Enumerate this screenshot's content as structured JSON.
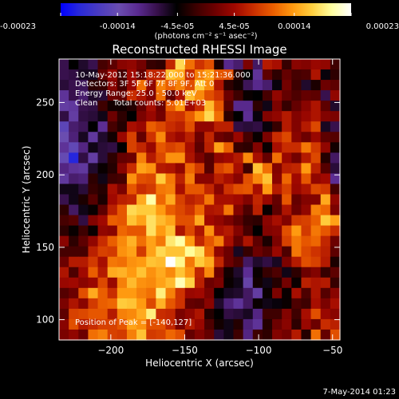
{
  "colorbar": {
    "tick_labels": [
      "-0.00023",
      "-0.00014",
      "-4.5e-05",
      "4.5e-05",
      "0.00014",
      "0.00023"
    ],
    "tick_values": [
      -0.00023,
      -0.00014,
      -4.5e-05,
      4.5e-05,
      0.00014,
      0.00023
    ],
    "range": [
      -0.00023,
      0.00023
    ],
    "unit_label": "(photons cm⁻² s⁻¹ asec⁻²)"
  },
  "info": {
    "time_range": "10-May-2012 15:18:22.000 to 15:21:36.000",
    "detectors": "Detectors: 3F 5F 6F 7F 8F 9F, Att 0",
    "energy_range": "Energy Range: 25.0 - 50.0 keV",
    "clean_label": "Clean",
    "total_counts": "Total counts: 5.01E+03",
    "peak_position": "Position of Peak = [-140,127]"
  },
  "footer": {
    "date": "7-May-2014 01:23"
  },
  "chart_data": {
    "type": "heatmap",
    "title": "Reconstructed RHESSI Image",
    "xlabel": "Heliocentric X (arcsec)",
    "ylabel": "Heliocentric Y (arcsec)",
    "xlim": [
      -235,
      -45
    ],
    "ylim": [
      86,
      280
    ],
    "x_ticks": [
      -200,
      -150,
      -100,
      -50
    ],
    "x_tick_labels": [
      "−200",
      "−150",
      "−100",
      "−50"
    ],
    "y_ticks": [
      100,
      150,
      200,
      250
    ],
    "y_tick_labels": [
      "100",
      "150",
      "200",
      "250"
    ],
    "peak": [
      -140,
      127
    ],
    "colormap": [
      "#0000ff",
      "#2a2ad8",
      "#4b3cc0",
      "#6a4db0",
      "#5a2a90",
      "#36104a",
      "#000000",
      "#3c0000",
      "#6e0000",
      "#a00800",
      "#cc3000",
      "#ec6000",
      "#ff9a10",
      "#ffd040",
      "#ffffa0",
      "#ffffff"
    ],
    "grid": "27x29",
    "values": [
      [
        0.33,
        0.4,
        0.36,
        0.33,
        0.48,
        0.51,
        0.57,
        0.58,
        0.54,
        0.46,
        0.45,
        0.65,
        0.88,
        0.75,
        0.67,
        0.71,
        0.43,
        0.27,
        0.3,
        0.55,
        0.31,
        0.63,
        0.61,
        0.46,
        0.57,
        0.56,
        0.59,
        0.58,
        0.47
      ],
      [
        0.33,
        0.34,
        0.37,
        0.37,
        0.52,
        0.59,
        0.48,
        0.6,
        0.52,
        0.65,
        0.65,
        0.85,
        0.82,
        0.66,
        0.77,
        0.81,
        0.72,
        0.71,
        0.44,
        0.4,
        0.25,
        0.51,
        0.45,
        0.52,
        0.48,
        0.49,
        0.62,
        0.39,
        0.45
      ],
      [
        0.35,
        0.33,
        0.32,
        0.45,
        0.46,
        0.57,
        0.48,
        0.59,
        0.75,
        0.58,
        0.77,
        0.73,
        0.77,
        0.71,
        0.86,
        0.78,
        0.62,
        0.45,
        0.42,
        0.32,
        0.27,
        0.3,
        0.39,
        0.54,
        0.47,
        0.36,
        0.43,
        0.53,
        0.51
      ],
      [
        0.25,
        0.33,
        0.3,
        0.36,
        0.35,
        0.53,
        0.52,
        0.66,
        0.62,
        0.56,
        0.75,
        0.52,
        0.62,
        0.84,
        0.78,
        0.71,
        0.67,
        0.53,
        0.47,
        0.41,
        0.4,
        0.48,
        0.58,
        0.52,
        0.49,
        0.52,
        0.51,
        0.33,
        0.58
      ],
      [
        0.23,
        0.24,
        0.33,
        0.34,
        0.47,
        0.42,
        0.42,
        0.44,
        0.52,
        0.61,
        0.53,
        0.73,
        0.8,
        0.6,
        0.66,
        0.84,
        0.72,
        0.5,
        0.27,
        0.27,
        0.45,
        0.38,
        0.55,
        0.46,
        0.52,
        0.57,
        0.62,
        0.51,
        0.36
      ],
      [
        0.34,
        0.23,
        0.34,
        0.35,
        0.38,
        0.53,
        0.45,
        0.4,
        0.55,
        0.59,
        0.54,
        0.68,
        0.67,
        0.73,
        0.8,
        0.88,
        0.75,
        0.45,
        0.4,
        0.26,
        0.39,
        0.56,
        0.58,
        0.63,
        0.56,
        0.59,
        0.62,
        0.56,
        0.55
      ],
      [
        0.17,
        0.3,
        0.32,
        0.4,
        0.26,
        0.48,
        0.44,
        0.61,
        0.59,
        0.73,
        0.7,
        0.66,
        0.64,
        0.71,
        0.58,
        0.58,
        0.64,
        0.64,
        0.34,
        0.35,
        0.34,
        0.39,
        0.46,
        0.63,
        0.56,
        0.63,
        0.7,
        0.37,
        0.33
      ],
      [
        0.2,
        0.29,
        0.37,
        0.24,
        0.36,
        0.42,
        0.59,
        0.69,
        0.52,
        0.67,
        0.78,
        0.62,
        0.59,
        0.64,
        0.53,
        0.65,
        0.53,
        0.51,
        0.59,
        0.48,
        0.41,
        0.55,
        0.66,
        0.7,
        0.57,
        0.53,
        0.59,
        0.51,
        0.5
      ],
      [
        0.25,
        0.18,
        0.28,
        0.38,
        0.35,
        0.34,
        0.4,
        0.69,
        0.65,
        0.59,
        0.72,
        0.69,
        0.71,
        0.61,
        0.51,
        0.64,
        0.81,
        0.73,
        0.46,
        0.45,
        0.56,
        0.41,
        0.61,
        0.66,
        0.66,
        0.76,
        0.68,
        0.58,
        0.42
      ],
      [
        0.19,
        0.06,
        0.34,
        0.23,
        0.35,
        0.45,
        0.52,
        0.53,
        0.77,
        0.63,
        0.7,
        0.79,
        0.79,
        0.62,
        0.55,
        0.5,
        0.58,
        0.6,
        0.63,
        0.78,
        0.61,
        0.52,
        0.75,
        0.59,
        0.54,
        0.63,
        0.7,
        0.44,
        0.31
      ],
      [
        0.28,
        0.25,
        0.24,
        0.36,
        0.41,
        0.44,
        0.57,
        0.66,
        0.81,
        0.79,
        0.63,
        0.62,
        0.58,
        0.74,
        0.68,
        0.5,
        0.69,
        0.72,
        0.61,
        0.47,
        0.85,
        0.75,
        0.56,
        0.64,
        0.65,
        0.8,
        0.64,
        0.5,
        0.35
      ],
      [
        0.24,
        0.3,
        0.29,
        0.45,
        0.38,
        0.47,
        0.48,
        0.79,
        0.71,
        0.7,
        0.86,
        0.76,
        0.64,
        0.77,
        0.57,
        0.57,
        0.64,
        0.61,
        0.57,
        0.71,
        0.78,
        0.85,
        0.57,
        0.74,
        0.6,
        0.72,
        0.58,
        0.6,
        0.26
      ],
      [
        0.38,
        0.38,
        0.35,
        0.46,
        0.44,
        0.61,
        0.55,
        0.72,
        0.66,
        0.68,
        0.76,
        0.77,
        0.61,
        0.72,
        0.72,
        0.65,
        0.57,
        0.67,
        0.71,
        0.72,
        0.61,
        0.8,
        0.63,
        0.69,
        0.59,
        0.62,
        0.7,
        0.68,
        0.48
      ],
      [
        0.33,
        0.38,
        0.43,
        0.5,
        0.43,
        0.6,
        0.64,
        0.65,
        0.82,
        0.94,
        0.74,
        0.82,
        0.69,
        0.64,
        0.66,
        0.76,
        0.61,
        0.61,
        0.6,
        0.56,
        0.65,
        0.59,
        0.52,
        0.72,
        0.52,
        0.56,
        0.56,
        0.82,
        0.58
      ],
      [
        0.45,
        0.31,
        0.38,
        0.41,
        0.51,
        0.64,
        0.72,
        0.88,
        0.86,
        0.86,
        0.8,
        0.73,
        0.7,
        0.67,
        0.74,
        0.62,
        0.63,
        0.76,
        0.56,
        0.49,
        0.64,
        0.41,
        0.51,
        0.62,
        0.53,
        0.58,
        0.77,
        0.74,
        0.55
      ],
      [
        0.48,
        0.5,
        0.34,
        0.56,
        0.6,
        0.73,
        0.72,
        0.85,
        0.81,
        0.89,
        0.84,
        0.81,
        0.71,
        0.71,
        0.82,
        0.6,
        0.58,
        0.55,
        0.51,
        0.46,
        0.45,
        0.57,
        0.61,
        0.56,
        0.68,
        0.69,
        0.73,
        0.86,
        0.81
      ],
      [
        0.45,
        0.41,
        0.47,
        0.41,
        0.58,
        0.57,
        0.74,
        0.72,
        0.72,
        0.89,
        0.8,
        0.85,
        0.62,
        0.7,
        0.62,
        0.79,
        0.61,
        0.63,
        0.56,
        0.48,
        0.4,
        0.56,
        0.57,
        0.71,
        0.8,
        0.68,
        0.76,
        0.72,
        0.66
      ],
      [
        0.57,
        0.45,
        0.51,
        0.58,
        0.66,
        0.73,
        0.78,
        0.83,
        0.75,
        0.81,
        0.76,
        0.9,
        0.94,
        0.8,
        0.65,
        0.72,
        0.77,
        0.61,
        0.52,
        0.62,
        0.51,
        0.43,
        0.55,
        0.69,
        0.76,
        0.72,
        0.74,
        0.65,
        0.53
      ],
      [
        0.48,
        0.48,
        0.48,
        0.64,
        0.69,
        0.68,
        0.79,
        0.81,
        0.68,
        0.81,
        0.88,
        0.85,
        0.85,
        0.93,
        0.89,
        0.74,
        0.58,
        0.53,
        0.37,
        0.46,
        0.53,
        0.5,
        0.59,
        0.49,
        0.76,
        0.7,
        0.67,
        0.64,
        0.51
      ],
      [
        0.53,
        0.63,
        0.63,
        0.68,
        0.61,
        0.76,
        0.75,
        0.79,
        0.8,
        0.85,
        0.84,
        1.0,
        0.92,
        0.76,
        0.86,
        0.82,
        0.65,
        0.53,
        0.49,
        0.31,
        0.36,
        0.34,
        0.37,
        0.55,
        0.63,
        0.71,
        0.69,
        0.63,
        0.43
      ],
      [
        0.62,
        0.49,
        0.6,
        0.73,
        0.63,
        0.82,
        0.83,
        0.8,
        0.85,
        0.79,
        0.82,
        0.78,
        0.85,
        0.79,
        0.65,
        0.78,
        0.53,
        0.42,
        0.36,
        0.26,
        0.41,
        0.46,
        0.49,
        0.38,
        0.45,
        0.53,
        0.56,
        0.46,
        0.51
      ],
      [
        0.59,
        0.6,
        0.57,
        0.59,
        0.7,
        0.59,
        0.77,
        0.84,
        0.79,
        0.78,
        0.81,
        0.84,
        0.95,
        0.87,
        0.64,
        0.53,
        0.55,
        0.41,
        0.38,
        0.22,
        0.42,
        0.38,
        0.44,
        0.54,
        0.41,
        0.64,
        0.62,
        0.63,
        0.46
      ],
      [
        0.5,
        0.53,
        0.71,
        0.82,
        0.73,
        0.66,
        0.8,
        0.8,
        0.77,
        0.75,
        0.91,
        0.77,
        0.67,
        0.59,
        0.6,
        0.55,
        0.4,
        0.37,
        0.36,
        0.31,
        0.23,
        0.41,
        0.55,
        0.41,
        0.61,
        0.49,
        0.62,
        0.5,
        0.57
      ],
      [
        0.55,
        0.62,
        0.57,
        0.68,
        0.73,
        0.74,
        0.86,
        0.85,
        0.8,
        0.7,
        0.83,
        0.72,
        0.67,
        0.52,
        0.51,
        0.57,
        0.36,
        0.29,
        0.25,
        0.31,
        0.41,
        0.38,
        0.39,
        0.41,
        0.49,
        0.47,
        0.61,
        0.55,
        0.61
      ],
      [
        0.51,
        0.69,
        0.7,
        0.72,
        0.72,
        0.63,
        0.77,
        0.78,
        0.82,
        0.91,
        0.66,
        0.65,
        0.55,
        0.58,
        0.62,
        0.44,
        0.4,
        0.34,
        0.35,
        0.37,
        0.28,
        0.47,
        0.47,
        0.56,
        0.47,
        0.61,
        0.71,
        0.59,
        0.57
      ],
      [
        0.57,
        0.71,
        0.63,
        0.66,
        0.69,
        0.69,
        0.72,
        0.81,
        0.79,
        0.71,
        0.71,
        0.65,
        0.55,
        0.63,
        0.59,
        0.49,
        0.42,
        0.38,
        0.44,
        0.29,
        0.25,
        0.44,
        0.53,
        0.57,
        0.45,
        0.59,
        0.53,
        0.66,
        0.64
      ],
      [
        0.55,
        0.58,
        0.53,
        0.75,
        0.77,
        0.69,
        0.68,
        0.77,
        0.85,
        0.68,
        0.69,
        0.74,
        0.71,
        0.52,
        0.56,
        0.52,
        0.35,
        0.38,
        0.47,
        0.28,
        0.47,
        0.45,
        0.56,
        0.54,
        0.63,
        0.44,
        0.75,
        0.52,
        0.71
      ]
    ]
  }
}
